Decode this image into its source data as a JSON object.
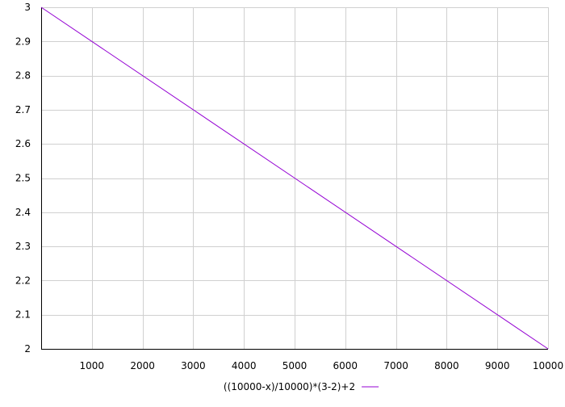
{
  "chart_data": {
    "type": "line",
    "title": "",
    "xlabel": "",
    "ylabel": "",
    "xlim": [
      0,
      10000
    ],
    "ylim": [
      2,
      3
    ],
    "x_ticks": [
      1000,
      2000,
      3000,
      4000,
      5000,
      6000,
      7000,
      8000,
      9000,
      10000
    ],
    "y_ticks": [
      2,
      2.1,
      2.2,
      2.3,
      2.4,
      2.5,
      2.6,
      2.7,
      2.8,
      2.9,
      3
    ],
    "grid": true,
    "legend": "bottom-center",
    "series": [
      {
        "name": "((10000-x)/10000)*(3-2)+2",
        "color": "#9400d3",
        "x": [
          0,
          10000
        ],
        "y": [
          3,
          2
        ]
      }
    ]
  }
}
